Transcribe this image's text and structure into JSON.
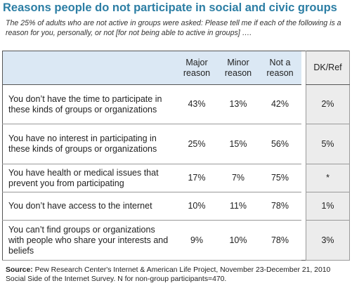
{
  "header": {
    "title": "Reasons people do not participate in social and civic groups",
    "subtitle": "The 25% of adults who are not active in groups were asked: Please tell me if each of the following is a reason for you, personally, or not [for not being able to active in groups] …."
  },
  "table": {
    "columns": [
      "Major reason",
      "Minor reason",
      "Not a reason",
      "DK/Ref"
    ],
    "rows": [
      [
        "You don’t have the time to participate in these kinds of groups or organizations",
        "43%",
        "13%",
        "42%",
        "2%"
      ],
      [
        "You have no interest in participating in these kinds of groups or organizations",
        "25%",
        "15%",
        "56%",
        "5%"
      ],
      [
        "You have health or medical issues that prevent you from participating",
        "17%",
        "7%",
        "75%",
        "*"
      ],
      [
        "You don’t have access to the internet",
        "10%",
        "11%",
        "78%",
        "1%"
      ],
      [
        "You can’t find groups or organizations with people who share your interests and beliefs",
        "9%",
        "10%",
        "78%",
        "3%"
      ]
    ]
  },
  "source": {
    "label": "Source:",
    "text": "Pew Research Center's Internet & American Life Project, November 23-December 21, 2010 Social Side of the Internet Survey. N for non-group participants=470."
  }
}
